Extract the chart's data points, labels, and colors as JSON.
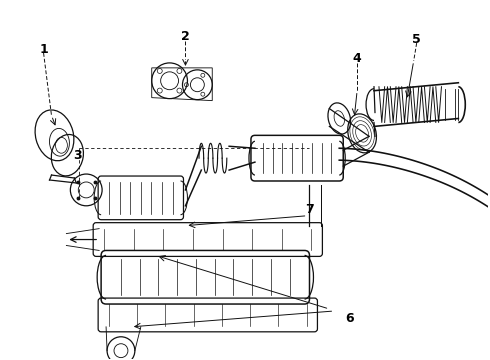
{
  "background_color": "#ffffff",
  "line_color": "#111111",
  "fig_width": 4.9,
  "fig_height": 3.6,
  "dpi": 100
}
